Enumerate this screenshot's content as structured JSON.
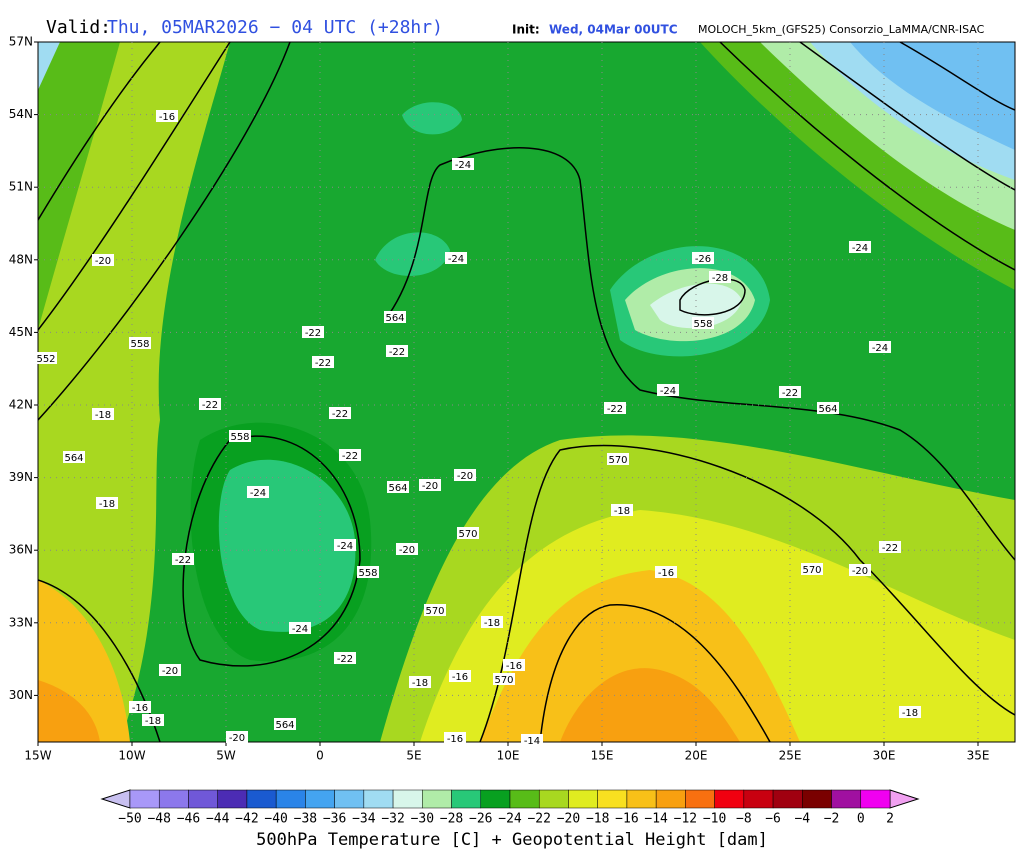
{
  "header": {
    "valid_label": "Valid:",
    "valid_time": "Thu, 05MAR2026 − 04 UTC (+28hr)",
    "init_label": "Init:",
    "init_time": "Wed, 04Mar 00UTC",
    "model": "MOLOCH_5km_(GFS25) Consorzio_LaMMA/CNR-ISAC"
  },
  "lat_labels": [
    "57N",
    "54N",
    "51N",
    "48N",
    "45N",
    "42N",
    "39N",
    "36N",
    "33N",
    "30N"
  ],
  "lon_labels": [
    "15W",
    "10W",
    "5W",
    "0",
    "5E",
    "10E",
    "15E",
    "20E",
    "25E",
    "30E",
    "35E"
  ],
  "contour_labels": [
    "-16",
    "-20",
    "558",
    "552",
    "-18",
    "564",
    "-18",
    "-22",
    "-20",
    "-16",
    "-18",
    "-20",
    "564",
    "-24",
    "558",
    "-24",
    "558",
    "-24",
    "-22",
    "-22",
    "-22",
    "-22",
    "-22",
    "-22",
    "564",
    "-22",
    "-24",
    "-24",
    "564",
    "-20",
    "-20",
    "570",
    "-20",
    "570",
    "-18",
    "-18",
    "-16",
    "-16",
    "570",
    "-16",
    "-14",
    "-26",
    "-28",
    "558",
    "-24",
    "-22",
    "570",
    "-18",
    "-16",
    "-22",
    "564",
    "-24",
    "-24",
    "-22",
    "-20",
    "570",
    "-18"
  ],
  "colorbar": {
    "labels": [
      "−50",
      "−48",
      "−46",
      "−44",
      "−42",
      "−40",
      "−38",
      "−36",
      "−34",
      "−32",
      "−30",
      "−28",
      "−26",
      "−24",
      "−22",
      "−20",
      "−18",
      "−16",
      "−14",
      "−12",
      "−10",
      "−8",
      "−6",
      "−4",
      "−2",
      "0",
      "2"
    ],
    "colors": [
      "#a898f8",
      "#8c78ec",
      "#7058d8",
      "#4c2cb4",
      "#1a5ad0",
      "#2a84e8",
      "#44a4f0",
      "#70c0f2",
      "#a0dcf2",
      "#d8f6ea",
      "#b0eca8",
      "#28c878",
      "#08a020",
      "#58bc18",
      "#a8d820",
      "#e0ec20",
      "#f8e020",
      "#f8c018",
      "#f8a010",
      "#f87010",
      "#f00010",
      "#c80010",
      "#a00010",
      "#7a0000",
      "#a010a0",
      "#f000f0"
    ],
    "low_color": "#c8c0f0",
    "high_color": "#f0a0f0",
    "title": "500hPa Temperature [C] + Geopotential Height [dam]"
  }
}
